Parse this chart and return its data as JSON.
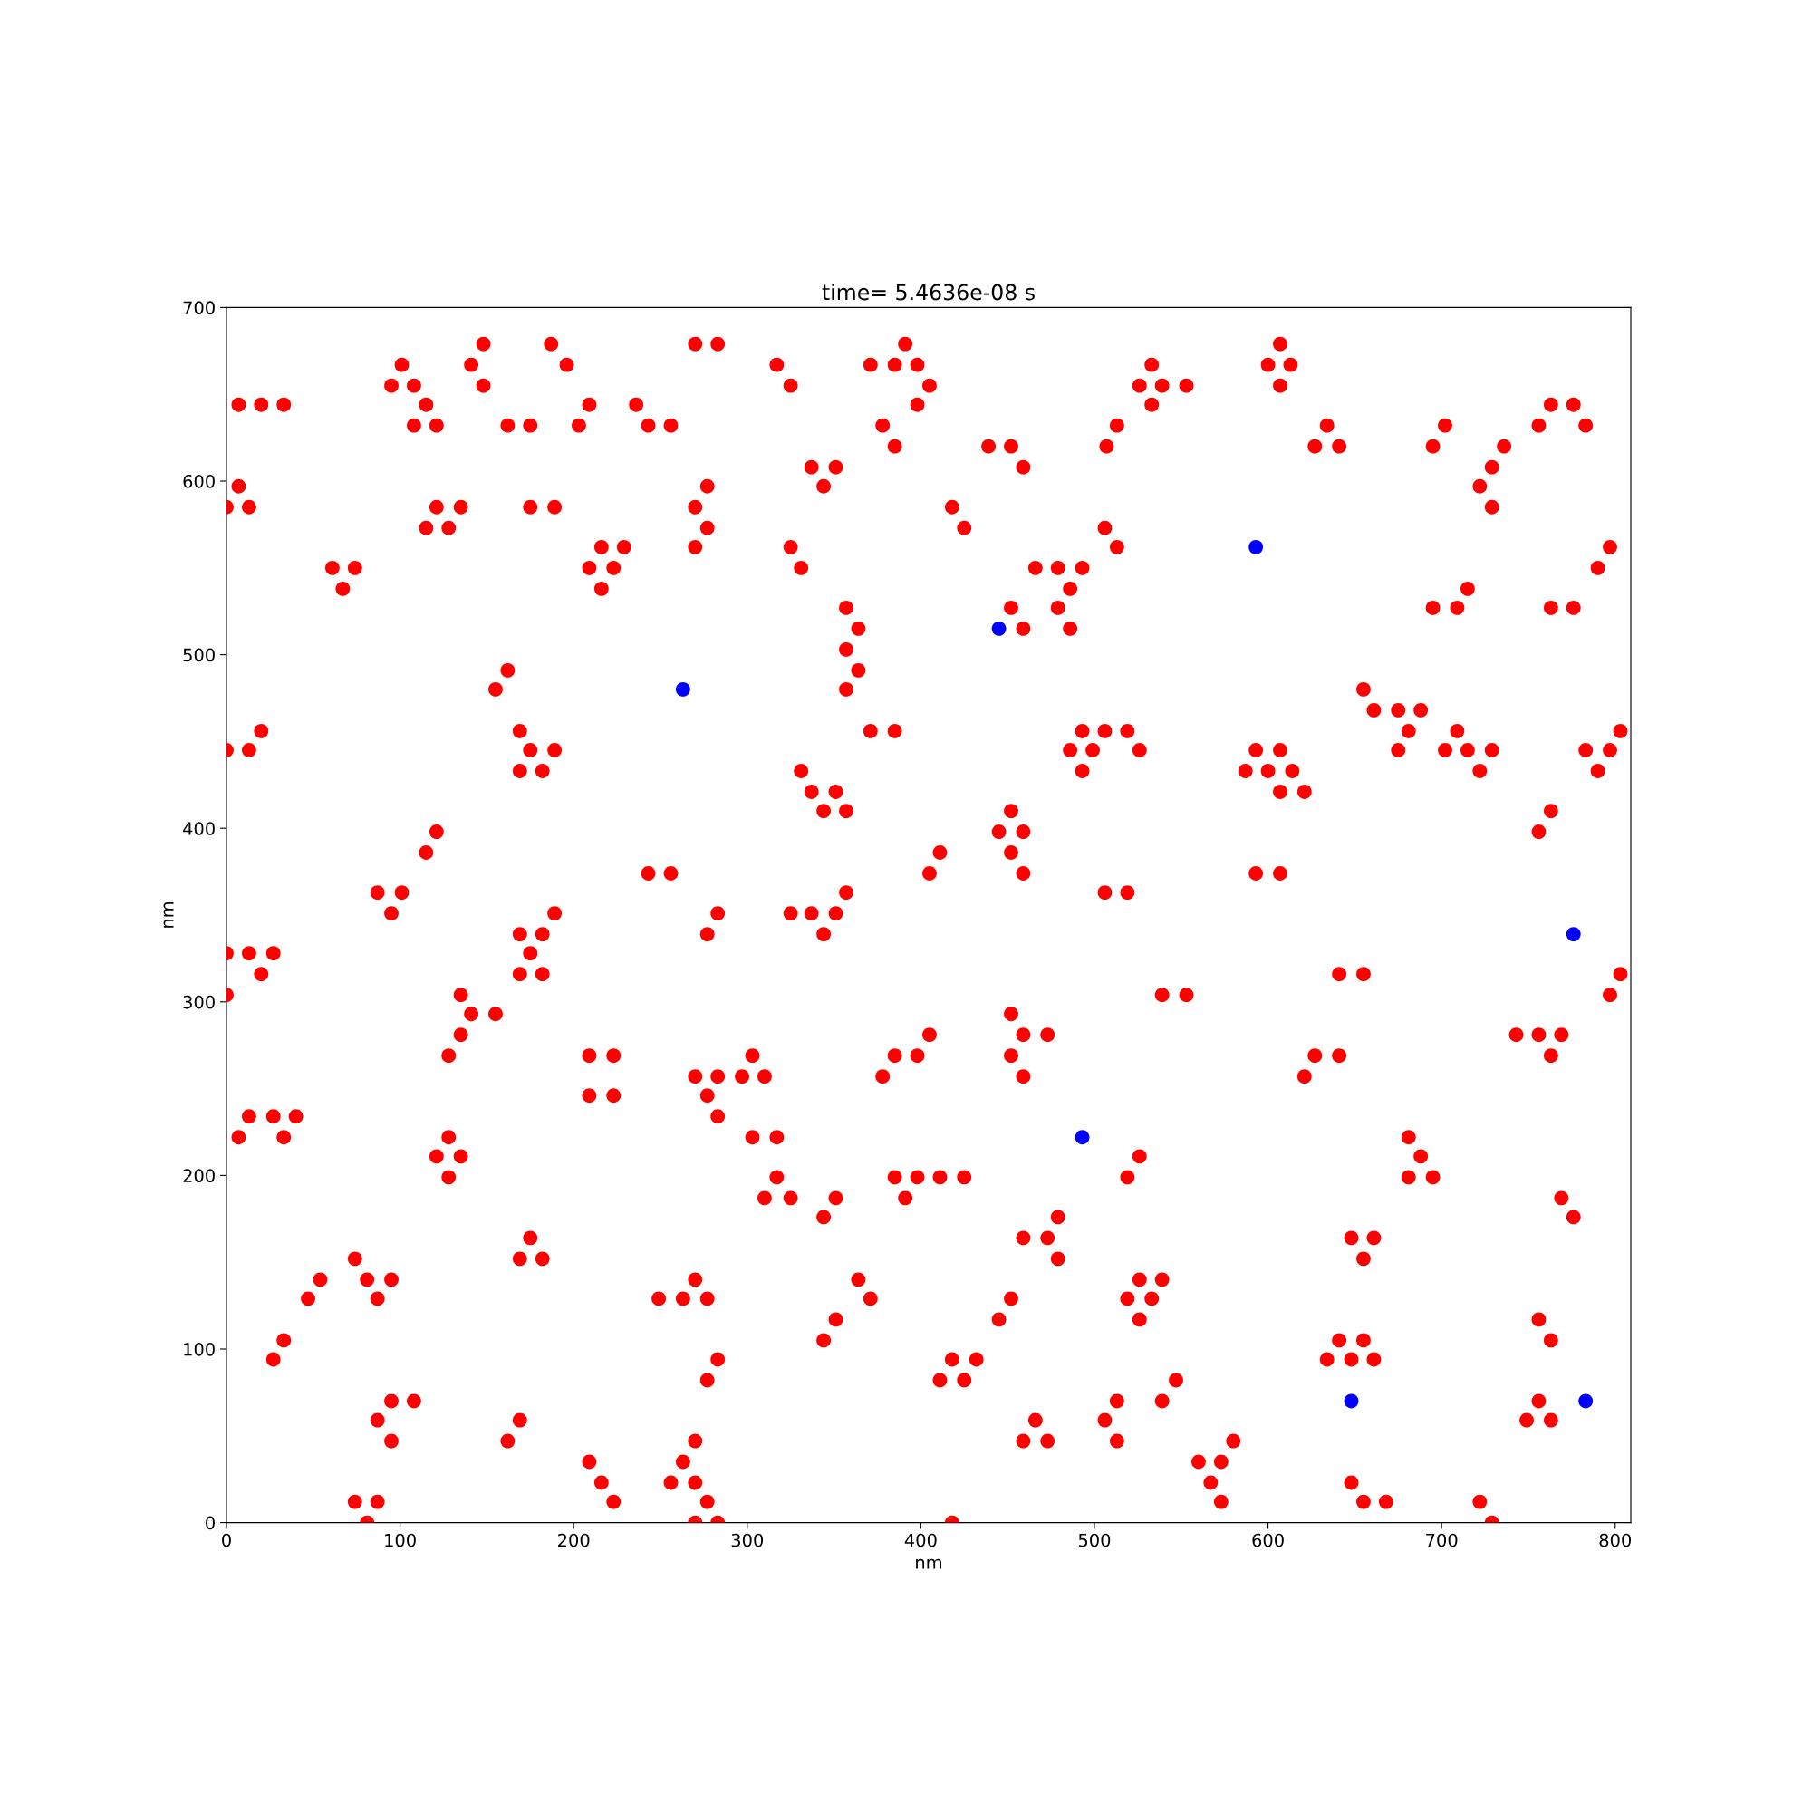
{
  "chart_data": {
    "type": "scatter",
    "title": "time= 5.4636e-08 s",
    "xlabel": "nm",
    "ylabel": "nm",
    "xlim": [
      0,
      809
    ],
    "ylim": [
      0,
      700
    ],
    "xticks": [
      0,
      100,
      200,
      300,
      400,
      500,
      600,
      700,
      800
    ],
    "yticks": [
      0,
      100,
      200,
      300,
      400,
      500,
      600,
      700
    ],
    "marker": "circle",
    "grid": false,
    "legend": false,
    "series": [
      {
        "color": "#ff0000",
        "x": [
          148,
          187,
          270,
          283,
          391,
          607,
          101,
          141,
          196,
          371,
          385,
          398,
          317,
          533,
          600,
          613,
          95,
          108,
          148,
          325,
          405,
          526,
          539,
          553,
          607,
          7,
          20,
          33,
          115,
          209,
          236,
          398,
          533,
          763,
          776,
          108,
          121,
          162,
          175,
          203,
          243,
          256,
          378,
          513,
          634,
          702,
          756,
          783,
          385,
          439,
          452,
          507,
          627,
          641,
          695,
          736,
          337,
          351,
          459,
          729,
          7,
          277,
          344,
          722,
          0,
          13,
          121,
          135,
          175,
          189,
          270,
          418,
          729,
          115,
          128,
          277,
          425,
          506,
          216,
          229,
          270,
          325,
          513,
          797,
          61,
          74,
          209,
          223,
          331,
          466,
          479,
          493,
          790,
          67,
          216,
          486,
          715,
          357,
          452,
          479,
          695,
          709,
          763,
          776,
          364,
          459,
          486,
          357,
          162,
          364,
          155,
          357,
          655,
          661,
          675,
          688,
          20,
          169,
          371,
          385,
          493,
          506,
          519,
          681,
          709,
          803,
          0,
          13,
          175,
          189,
          486,
          499,
          526,
          593,
          607,
          675,
          702,
          715,
          729,
          783,
          797,
          169,
          182,
          331,
          493,
          587,
          600,
          614,
          722,
          790,
          337,
          351,
          607,
          621,
          344,
          357,
          452,
          763,
          121,
          445,
          459,
          756,
          115,
          411,
          452,
          243,
          256,
          405,
          459,
          593,
          607,
          87,
          101,
          357,
          506,
          519,
          95,
          189,
          283,
          325,
          337,
          351,
          169,
          182,
          277,
          344,
          0,
          13,
          27,
          175,
          20,
          169,
          182,
          641,
          655,
          803,
          0,
          135,
          539,
          553,
          797,
          141,
          155,
          452,
          135,
          459,
          473,
          405,
          743,
          756,
          769,
          128,
          209,
          223,
          303,
          385,
          398,
          452,
          627,
          641,
          763,
          270,
          283,
          297,
          310,
          378,
          459,
          621,
          209,
          223,
          277,
          13,
          27,
          40,
          283,
          7,
          33,
          128,
          303,
          317,
          681,
          121,
          135,
          526,
          688,
          128,
          317,
          385,
          398,
          411,
          425,
          519,
          681,
          695,
          310,
          325,
          351,
          391,
          769,
          344,
          479,
          776,
          175,
          459,
          473,
          648,
          661,
          74,
          169,
          182,
          479,
          655,
          54,
          81,
          95,
          270,
          364,
          526,
          539,
          47,
          87,
          249,
          263,
          277,
          371,
          452,
          519,
          533,
          351,
          445,
          526,
          756,
          33,
          344,
          641,
          655,
          763,
          27,
          283,
          418,
          432,
          634,
          648,
          661,
          277,
          411,
          425,
          547,
          95,
          108,
          513,
          539,
          756,
          87,
          169,
          466,
          506,
          749,
          763,
          95,
          162,
          270,
          459,
          473,
          513,
          580,
          209,
          263,
          560,
          573,
          216,
          256,
          270,
          567,
          648,
          74,
          87,
          223,
          277,
          573,
          655,
          668,
          722,
          81,
          270,
          283,
          418,
          729
        ],
        "values": [
          679,
          679,
          679,
          679,
          679,
          679,
          667,
          667,
          667,
          667,
          667,
          667,
          667,
          667,
          667,
          667,
          655,
          655,
          655,
          655,
          655,
          655,
          655,
          655,
          655,
          644,
          644,
          644,
          644,
          644,
          644,
          644,
          644,
          644,
          644,
          632,
          632,
          632,
          632,
          632,
          632,
          632,
          632,
          632,
          632,
          632,
          632,
          632,
          620,
          620,
          620,
          620,
          620,
          620,
          620,
          620,
          608,
          608,
          608,
          608,
          597,
          597,
          597,
          597,
          585,
          585,
          585,
          585,
          585,
          585,
          585,
          585,
          585,
          573,
          573,
          573,
          573,
          573,
          562,
          562,
          562,
          562,
          562,
          562,
          550,
          550,
          550,
          550,
          550,
          550,
          550,
          550,
          550,
          538,
          538,
          538,
          538,
          527,
          527,
          527,
          527,
          527,
          527,
          527,
          515,
          515,
          515,
          503,
          491,
          491,
          480,
          480,
          480,
          468,
          468,
          468,
          456,
          456,
          456,
          456,
          456,
          456,
          456,
          456,
          456,
          456,
          445,
          445,
          445,
          445,
          445,
          445,
          445,
          445,
          445,
          445,
          445,
          445,
          445,
          445,
          445,
          433,
          433,
          433,
          433,
          433,
          433,
          433,
          433,
          433,
          421,
          421,
          421,
          421,
          410,
          410,
          410,
          410,
          398,
          398,
          398,
          398,
          386,
          386,
          386,
          374,
          374,
          374,
          374,
          374,
          374,
          363,
          363,
          363,
          363,
          363,
          351,
          351,
          351,
          351,
          351,
          351,
          339,
          339,
          339,
          339,
          328,
          328,
          328,
          328,
          316,
          316,
          316,
          316,
          316,
          316,
          304,
          304,
          304,
          304,
          304,
          293,
          293,
          293,
          281,
          281,
          281,
          281,
          281,
          281,
          281,
          269,
          269,
          269,
          269,
          269,
          269,
          269,
          269,
          269,
          269,
          257,
          257,
          257,
          257,
          257,
          257,
          257,
          246,
          246,
          246,
          234,
          234,
          234,
          234,
          222,
          222,
          222,
          222,
          222,
          222,
          211,
          211,
          211,
          211,
          199,
          199,
          199,
          199,
          199,
          199,
          199,
          199,
          199,
          187,
          187,
          187,
          187,
          187,
          176,
          176,
          176,
          164,
          164,
          164,
          164,
          164,
          152,
          152,
          152,
          152,
          152,
          140,
          140,
          140,
          140,
          140,
          140,
          140,
          129,
          129,
          129,
          129,
          129,
          129,
          129,
          129,
          129,
          117,
          117,
          117,
          117,
          105,
          105,
          105,
          105,
          105,
          94,
          94,
          94,
          94,
          94,
          94,
          94,
          82,
          82,
          82,
          82,
          70,
          70,
          70,
          70,
          70,
          59,
          59,
          59,
          59,
          59,
          59,
          47,
          47,
          47,
          47,
          47,
          47,
          47,
          35,
          35,
          35,
          35,
          23,
          23,
          23,
          23,
          23,
          12,
          12,
          12,
          12,
          12,
          12,
          12,
          12,
          0,
          0,
          0,
          0,
          0
        ]
      },
      {
        "color": "#0000ff",
        "x": [
          593,
          445,
          263,
          776,
          493,
          648,
          783
        ],
        "values": [
          562,
          515,
          480,
          339,
          222,
          70,
          70
        ]
      }
    ]
  }
}
